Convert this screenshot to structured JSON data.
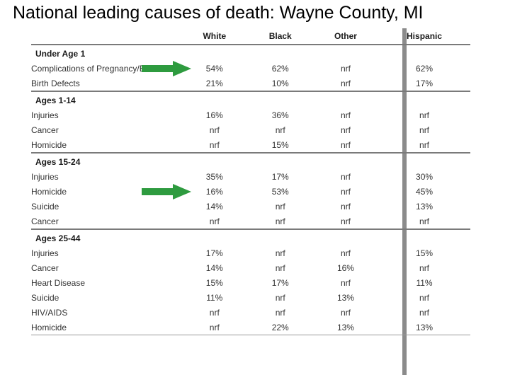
{
  "title": "National leading causes of death:  Wayne County, MI",
  "columns": {
    "cause": "",
    "white": "White",
    "black": "Black",
    "other": "Other",
    "hispanic": "Hispanic"
  },
  "arrow_color": "#2e9b3f",
  "vert_sep_color": "#8b8b8b",
  "border_color": "#7a7a7a",
  "groups": [
    {
      "label": "Under Age 1",
      "rows": [
        {
          "cause": "Complications of Pregnancy/Birth",
          "white": "54%",
          "black": "62%",
          "other": "nrf",
          "hispanic": "62%",
          "arrow": true
        },
        {
          "cause": "Birth Defects",
          "white": "21%",
          "black": "10%",
          "other": "nrf",
          "hispanic": "17%"
        }
      ]
    },
    {
      "label": "Ages 1-14",
      "rows": [
        {
          "cause": "Injuries",
          "white": "16%",
          "black": "36%",
          "other": "nrf",
          "hispanic": "nrf"
        },
        {
          "cause": "Cancer",
          "white": "nrf",
          "black": "nrf",
          "other": "nrf",
          "hispanic": "nrf"
        },
        {
          "cause": "Homicide",
          "white": "nrf",
          "black": "15%",
          "other": "nrf",
          "hispanic": "nrf"
        }
      ]
    },
    {
      "label": "Ages 15-24",
      "rows": [
        {
          "cause": "Injuries",
          "white": "35%",
          "black": "17%",
          "other": "nrf",
          "hispanic": "30%"
        },
        {
          "cause": "Homicide",
          "white": "16%",
          "black": "53%",
          "other": "nrf",
          "hispanic": "45%",
          "arrow": true
        },
        {
          "cause": "Suicide",
          "white": "14%",
          "black": "nrf",
          "other": "nrf",
          "hispanic": "13%"
        },
        {
          "cause": "Cancer",
          "white": "nrf",
          "black": "nrf",
          "other": "nrf",
          "hispanic": "nrf"
        }
      ]
    },
    {
      "label": "Ages 25-44",
      "rows": [
        {
          "cause": "Injuries",
          "white": "17%",
          "black": "nrf",
          "other": "nrf",
          "hispanic": "15%"
        },
        {
          "cause": "Cancer",
          "white": "14%",
          "black": "nrf",
          "other": "16%",
          "hispanic": "nrf"
        },
        {
          "cause": "Heart Disease",
          "white": "15%",
          "black": "17%",
          "other": "nrf",
          "hispanic": "11%"
        },
        {
          "cause": "Suicide",
          "white": "11%",
          "black": "nrf",
          "other": "13%",
          "hispanic": "nrf"
        },
        {
          "cause": "HIV/AIDS",
          "white": "nrf",
          "black": "nrf",
          "other": "nrf",
          "hispanic": "nrf"
        },
        {
          "cause": "Homicide",
          "white": "nrf",
          "black": "22%",
          "other": "13%",
          "hispanic": "13%"
        }
      ],
      "thinend": true
    }
  ]
}
